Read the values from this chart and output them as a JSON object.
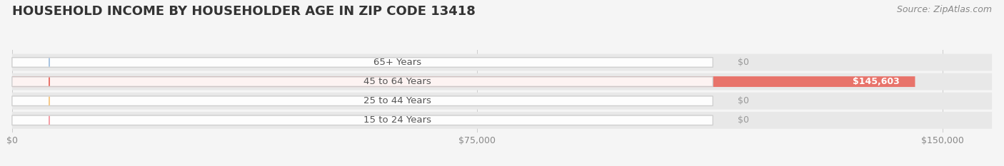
{
  "title": "HOUSEHOLD INCOME BY HOUSEHOLDER AGE IN ZIP CODE 13418",
  "source": "Source: ZipAtlas.com",
  "categories": [
    "15 to 24 Years",
    "25 to 44 Years",
    "45 to 64 Years",
    "65+ Years"
  ],
  "values": [
    0,
    0,
    145603,
    0
  ],
  "bar_colors": [
    "#f4a0a8",
    "#f5c98a",
    "#e8736a",
    "#a8c4e0"
  ],
  "value_labels": [
    "$0",
    "$0",
    "$145,603",
    "$0"
  ],
  "x_ticks": [
    0,
    75000,
    150000
  ],
  "x_tick_labels": [
    "$0",
    "$75,000",
    "$150,000"
  ],
  "xlim": [
    0,
    158000
  ],
  "background_color": "#f5f5f5",
  "bar_background_color": "#e8e8e8",
  "title_fontsize": 13,
  "label_fontsize": 9.5,
  "value_fontsize": 9,
  "source_fontsize": 9
}
